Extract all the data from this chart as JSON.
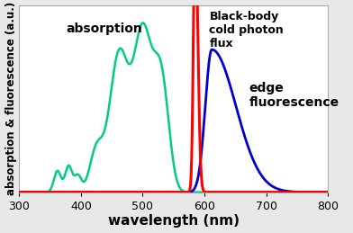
{
  "title": "",
  "xlabel": "wavelength (nm)",
  "ylabel": "absorption & fluorescence (a.u.)",
  "xlim": [
    300,
    800
  ],
  "ylim": [
    0,
    1.05
  ],
  "absorption_color": "#00cc88",
  "fluorescence_color": "#0000cc",
  "blackbody_color": "#ff0000",
  "annotation_absorption": "absorption",
  "annotation_fluorescence": "edge\nfluorescence",
  "annotation_blackbody": "Black-body\ncold photon\nflux",
  "bg_color": "#ffffff",
  "fig_bg_color": "#e8e8e8"
}
